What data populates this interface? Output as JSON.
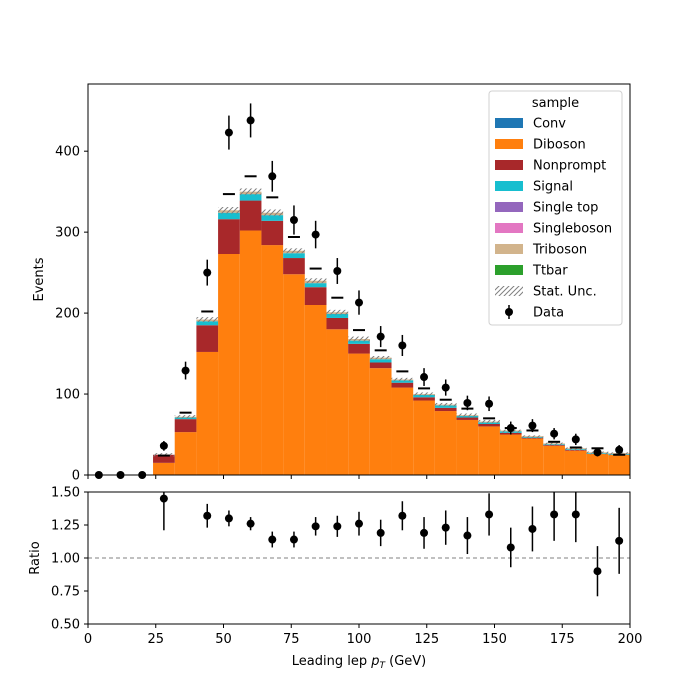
{
  "chart_data": [
    {
      "type": "bar",
      "subtype": "stacked-histogram",
      "xlabel": "",
      "ylabel": "Events",
      "xlim": [
        0,
        200
      ],
      "ylim": [
        0,
        483
      ],
      "xticks": [
        0,
        25,
        50,
        75,
        100,
        125,
        150,
        175,
        200
      ],
      "yticks": [
        0,
        100,
        200,
        300,
        400
      ],
      "bin_edges": [
        0,
        8,
        16,
        24,
        32,
        40,
        48,
        56,
        64,
        72,
        80,
        88,
        96,
        104,
        112,
        120,
        128,
        136,
        144,
        152,
        160,
        168,
        176,
        184,
        192,
        200
      ],
      "legend": {
        "title": "sample",
        "placement": "top-right",
        "entries": [
          "Conv",
          "Diboson",
          "Nonprompt",
          "Signal",
          "Single top",
          "Singleboson",
          "Triboson",
          "Ttbar",
          "Stat. Unc.",
          "Data"
        ]
      },
      "series": [
        {
          "name": "Conv",
          "color": "#1f77b4",
          "values": [
            0,
            0,
            0,
            0,
            0,
            0,
            0,
            0,
            0,
            0,
            0,
            0,
            0,
            0,
            0,
            0,
            0,
            0,
            0,
            0,
            0,
            0,
            0,
            0,
            0
          ]
        },
        {
          "name": "Diboson",
          "color": "#ff7f0e",
          "values": [
            0,
            0,
            0,
            15,
            53,
            152,
            273,
            302,
            284,
            248,
            210,
            180,
            150,
            132,
            108,
            92,
            79,
            68,
            60,
            50,
            45,
            36,
            30,
            26,
            25
          ]
        },
        {
          "name": "Nonprompt",
          "color": "#a8282a",
          "values": [
            0,
            0,
            0,
            10,
            16,
            33,
            43,
            37,
            30,
            20,
            22,
            14,
            12,
            7,
            6,
            4,
            4,
            3,
            3,
            2,
            1,
            1,
            1,
            0,
            0
          ]
        },
        {
          "name": "Signal",
          "color": "#17becf",
          "values": [
            0,
            0,
            0,
            0,
            2,
            5,
            8,
            8,
            7,
            6,
            5,
            5,
            4,
            4,
            3,
            3,
            3,
            2,
            2,
            2,
            1,
            1,
            1,
            1,
            1
          ]
        },
        {
          "name": "Single top",
          "color": "#9467bd",
          "values": [
            0,
            0,
            0,
            0,
            0,
            0,
            0,
            0,
            0,
            0,
            0,
            0,
            0,
            0,
            0,
            0,
            0,
            0,
            0,
            0,
            0,
            0,
            0,
            0,
            0
          ]
        },
        {
          "name": "Singleboson",
          "color": "#e377c2",
          "values": [
            0,
            0,
            0,
            0,
            0,
            0,
            0,
            0,
            0,
            0,
            0,
            0,
            0,
            0,
            0,
            0,
            0,
            0,
            0,
            0,
            0,
            0,
            0,
            0,
            0
          ]
        },
        {
          "name": "Triboson",
          "color": "#d2b48c",
          "values": [
            0,
            0,
            0,
            0,
            1,
            2,
            3,
            3,
            3,
            3,
            3,
            2,
            2,
            2,
            1,
            1,
            1,
            1,
            1,
            1,
            1,
            1,
            1,
            1,
            1
          ]
        },
        {
          "name": "Ttbar",
          "color": "#2ca02c",
          "values": [
            0,
            0,
            0,
            0,
            0,
            0,
            0,
            0,
            0,
            0,
            0,
            0,
            0,
            0,
            0,
            0,
            0,
            0,
            0,
            0,
            0,
            0,
            0,
            0,
            0
          ]
        }
      ],
      "stat_unc": [
        0,
        0,
        0,
        2,
        2,
        3,
        4,
        4,
        4,
        3,
        3,
        3,
        3,
        2,
        2,
        2,
        2,
        2,
        2,
        1,
        1,
        1,
        1,
        1,
        1
      ],
      "dash_markers": [
        0,
        0,
        0,
        24,
        77,
        202,
        347,
        369,
        343,
        294,
        255,
        219,
        179,
        154,
        128,
        107,
        93,
        82,
        70,
        58,
        55,
        41,
        34,
        33,
        25
      ],
      "data": {
        "name": "Data",
        "color": "#000000",
        "values": [
          0,
          0,
          0,
          36,
          129,
          250,
          423,
          438,
          369,
          315,
          297,
          252,
          213,
          171,
          160,
          121,
          108,
          89,
          88,
          58,
          61,
          51,
          44,
          28,
          31
        ],
        "errors": [
          0,
          0,
          0,
          6,
          11,
          16,
          21,
          21,
          19,
          18,
          17,
          16,
          15,
          13,
          13,
          11,
          10,
          9,
          9,
          8,
          8,
          7,
          7,
          5,
          6
        ]
      }
    },
    {
      "type": "scatter",
      "xlabel": "Leading lep",
      "xlabel_symbol": "p",
      "xlabel_subscript": "T",
      "xlabel_unit": "(GeV)",
      "ylabel": "Ratio",
      "xlim": [
        0,
        200
      ],
      "ylim": [
        0.5,
        1.5
      ],
      "xticks": [
        0,
        25,
        50,
        75,
        100,
        125,
        150,
        175,
        200
      ],
      "yticks": [
        0.5,
        0.75,
        1.0,
        1.25,
        1.5
      ],
      "ytick_labels": [
        "0.50",
        "0.75",
        "1.00",
        "1.25",
        "1.50"
      ],
      "reference_line": 1.0,
      "x": [
        28,
        44,
        52,
        60,
        68,
        76,
        84,
        92,
        100,
        108,
        116,
        124,
        132,
        140,
        148,
        156,
        164,
        172,
        180,
        188,
        196
      ],
      "y": [
        1.45,
        1.32,
        1.3,
        1.26,
        1.14,
        1.14,
        1.24,
        1.24,
        1.26,
        1.19,
        1.32,
        1.19,
        1.23,
        1.17,
        1.33,
        1.08,
        1.22,
        1.33,
        1.33,
        0.9,
        1.13
      ],
      "errors": [
        0.24,
        0.09,
        0.06,
        0.05,
        0.06,
        0.06,
        0.07,
        0.08,
        0.09,
        0.1,
        0.11,
        0.12,
        0.13,
        0.14,
        0.16,
        0.15,
        0.17,
        0.2,
        0.21,
        0.19,
        0.25
      ]
    }
  ]
}
